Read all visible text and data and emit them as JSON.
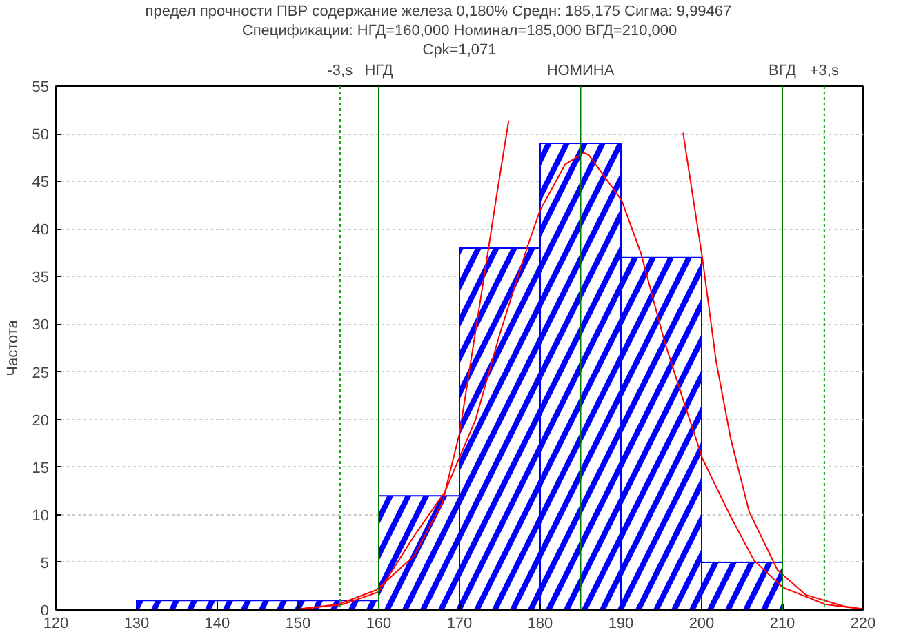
{
  "chart_data": {
    "type": "histogram",
    "title": "предел прочности ПВР содержание железа 0,180%      Средн: 185,175      Сигма: 9,99467",
    "subtitle": "Спецификации: НГД=160,000 Номинал=185,000 ВГД=210,000",
    "annotations": [
      "Cpk=1,071"
    ],
    "ylabel": "Частота",
    "bins": [
      120,
      130,
      140,
      150,
      160,
      170,
      180,
      190,
      200,
      210,
      220
    ],
    "values": [
      0,
      1,
      1,
      1,
      12,
      38,
      49,
      37,
      5,
      0
    ],
    "color": "#0000ff",
    "series": [
      {
        "type": "line",
        "color": "#ff0000",
        "x": [
          150.4,
          155.6,
          160,
          164.4,
          168.2,
          172,
          175,
          178.4,
          180,
          183.1,
          185.4,
          186,
          190.1,
          192.5,
          195.4,
          197.7,
          200.1,
          203.6,
          206.5,
          210,
          215.3,
          219.9
        ],
        "values": [
          0.1,
          0.6,
          1.9,
          7.8,
          12.4,
          20,
          29,
          38.1,
          42,
          46.8,
          48.0,
          47.8,
          43.0,
          37.4,
          28.2,
          22.1,
          15.9,
          9.8,
          5.2,
          2.4,
          0.6,
          0.1
        ]
      },
      {
        "type": "line",
        "color": "#ff0000",
        "x": [
          150,
          155,
          159.7,
          164.4,
          167.9,
          170,
          171.4,
          173.2,
          174.6,
          176.1,
          186,
          197.7,
          200.1,
          201.8,
          203.6,
          205.9,
          209.4,
          212.9,
          217.6,
          220
        ],
        "values": [
          0.1,
          0.6,
          2.1,
          5.7,
          11.3,
          18.5,
          26.1,
          35.8,
          43.5,
          51.4,
          null,
          50.1,
          36.9,
          26.1,
          18.0,
          10.3,
          4.2,
          1.6,
          0.4,
          0.1
        ]
      }
    ],
    "xlim": [
      120,
      220
    ],
    "xticks": [
      120,
      130,
      140,
      150,
      160,
      170,
      180,
      190,
      200,
      210,
      220
    ],
    "ylim": [
      0,
      55
    ],
    "yticks": [
      0,
      5,
      10,
      15,
      20,
      25,
      30,
      35,
      40,
      45,
      50,
      55
    ],
    "grid": "y",
    "ref_lines": [
      {
        "axis": "x",
        "value": 155.2,
        "label": "-3,s",
        "color": "#00a000",
        "line_style": "dotted"
      },
      {
        "axis": "x",
        "value": 160,
        "label": "НГД",
        "color": "#008000",
        "line_style": "solid"
      },
      {
        "axis": "x",
        "value": 185,
        "label": "НОМИНА",
        "color": "#008000",
        "line_style": "solid"
      },
      {
        "axis": "x",
        "value": 210,
        "label": "ВГД",
        "color": "#008000",
        "line_style": "solid"
      },
      {
        "axis": "x",
        "value": 215.2,
        "label": "+3,s",
        "color": "#00a000",
        "line_style": "dotted"
      }
    ]
  }
}
